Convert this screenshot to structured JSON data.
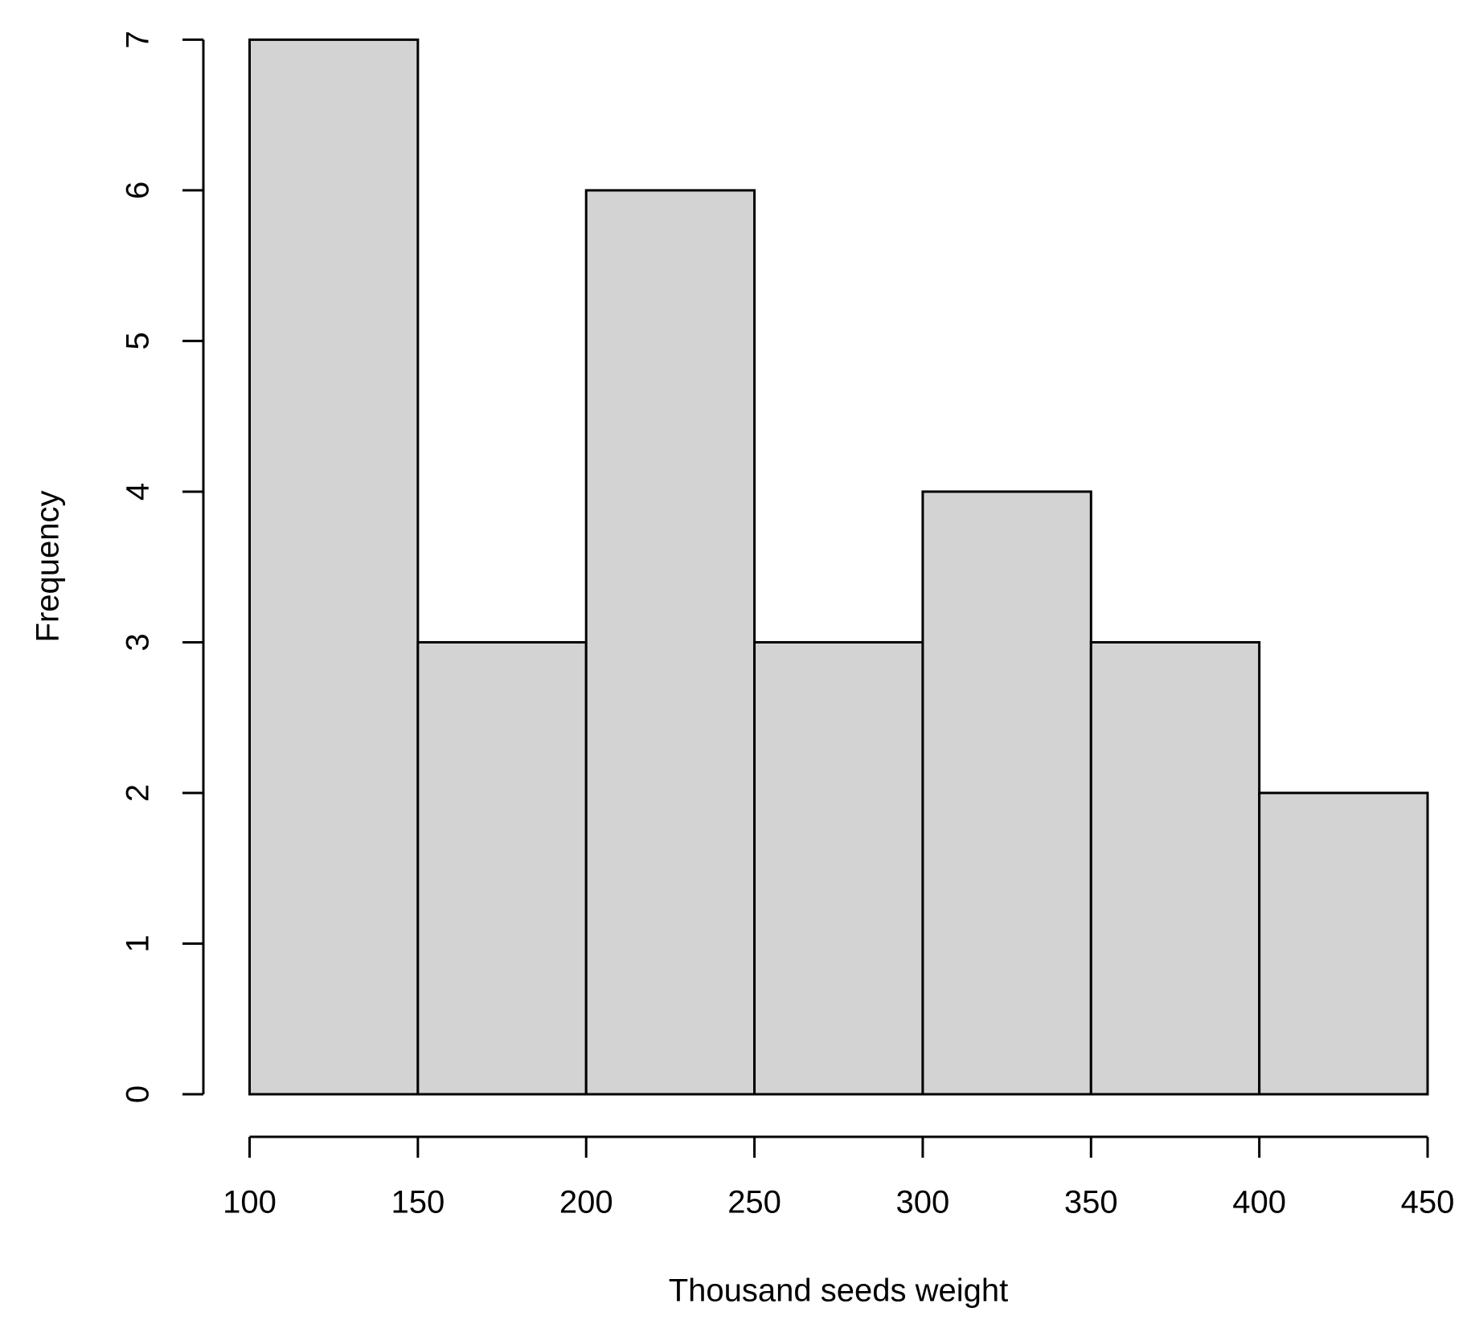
{
  "chart_data": {
    "type": "histogram",
    "x_label": "Thousand seeds weight",
    "y_label": "Frequency",
    "bins": [
      100,
      150,
      200,
      250,
      300,
      350,
      400,
      450
    ],
    "values": [
      7,
      3,
      6,
      3,
      4,
      3,
      2
    ],
    "color": "#d3d3d3",
    "xlim": [
      100,
      450
    ],
    "xticks": [
      100,
      150,
      200,
      250,
      300,
      350,
      400,
      450
    ],
    "ylim": [
      0,
      7
    ],
    "yticks": [
      0,
      1,
      2,
      3,
      4,
      5,
      6,
      7
    ]
  }
}
